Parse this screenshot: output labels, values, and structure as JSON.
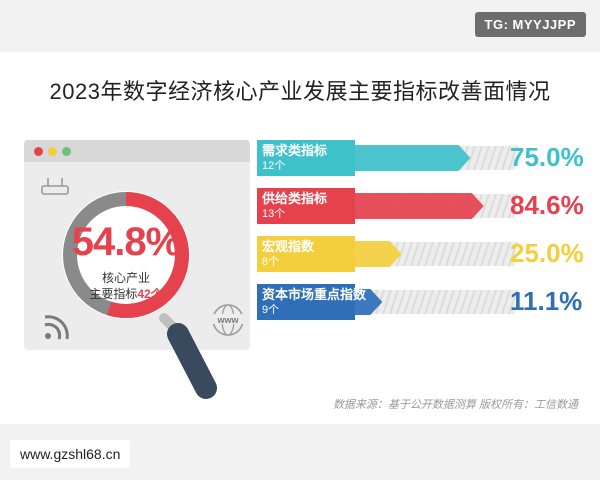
{
  "badges": {
    "tg": "TG: MYYJJPP",
    "site": "www.gzshl68.cn"
  },
  "title": "2023年数字经济核心产业发展主要指标改善面情况",
  "source": "数据来源：基于公开数据测算 版权所有：工信数通",
  "colors": {
    "cyan": "#3fc1cc",
    "red": "#e5424d",
    "yellow": "#f4cf3d",
    "blue": "#2f6fb8",
    "ring_bg": "#8a8a8a",
    "handle": "#3a4a5e"
  },
  "center": {
    "percent": "54.8%",
    "line1": "核心产业",
    "line2_prefix": "主要指标",
    "count": "42个",
    "ring_value": 54.8
  },
  "chart_data": {
    "type": "bar",
    "title": "2023年数字经济核心产业发展主要指标改善面情况",
    "categories": [
      "需求类指标",
      "供给类指标",
      "宏观指数",
      "资本市场重点指数"
    ],
    "counts": [
      "12个",
      "13个",
      "8个",
      "9个"
    ],
    "values": [
      75.0,
      84.6,
      25.0,
      11.1
    ],
    "value_labels": [
      "75.0%",
      "84.6%",
      "25.0%",
      "11.1%"
    ],
    "unit": "%",
    "xlim": [
      0,
      100
    ]
  },
  "icons": [
    "router-icon",
    "rss-icon",
    "www-globe-icon",
    "magnifier-icon"
  ]
}
